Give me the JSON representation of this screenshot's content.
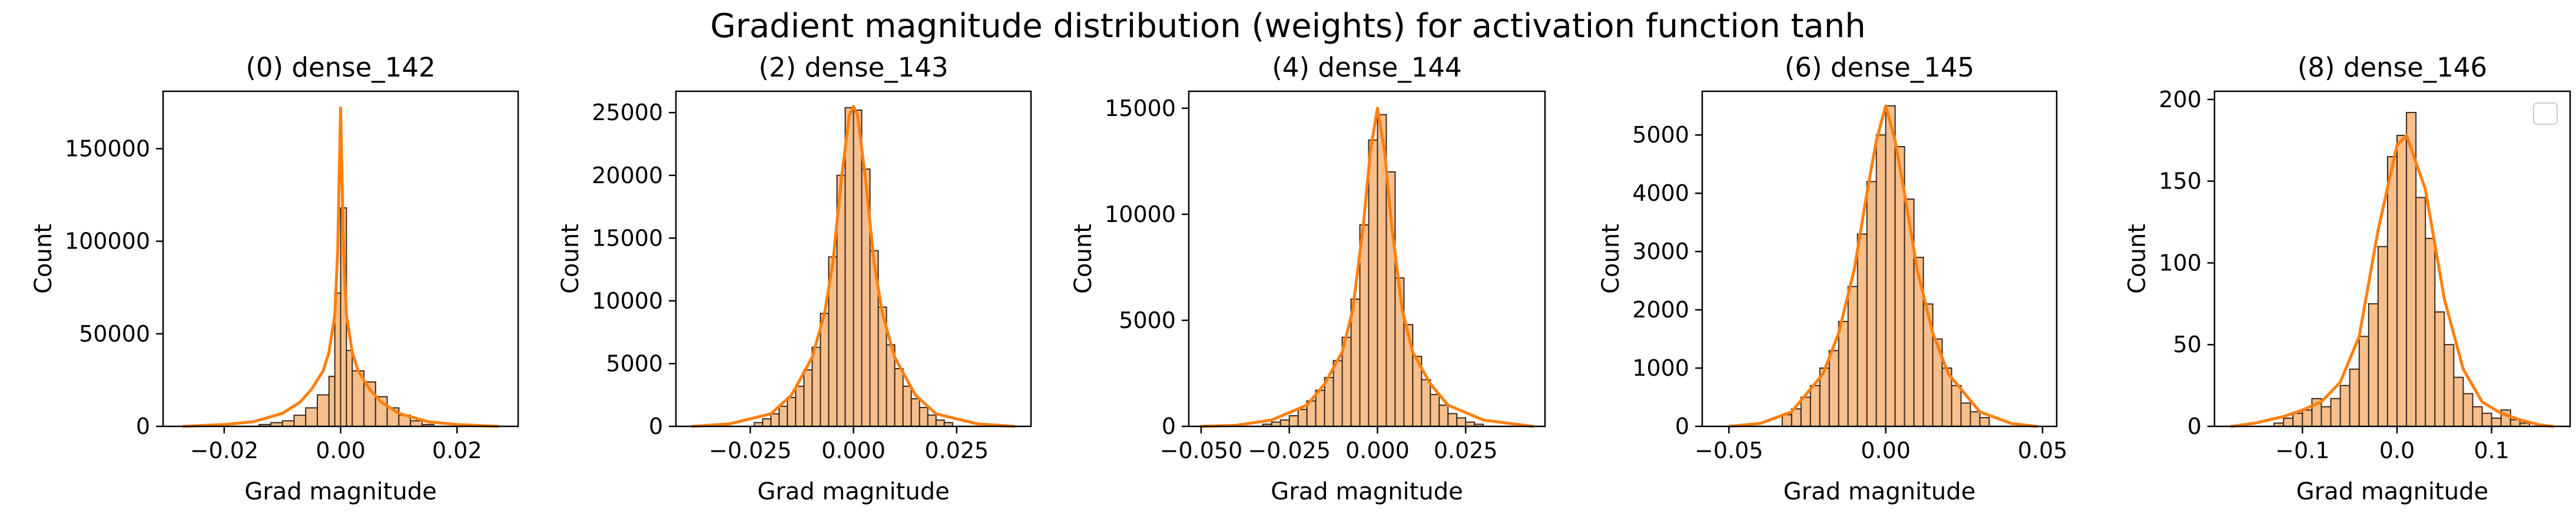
{
  "title": "Gradient magnitude distribution (weights) for activation function tanh",
  "colors": {
    "bar_fill": "#f7bf8c",
    "bar_edge": "#3a2a1e",
    "kde_line": "#ff7f0e",
    "axis": "#000000"
  },
  "chart_data": [
    {
      "type": "bar",
      "title": "(0) dense_142",
      "xlabel": "Grad magnitude",
      "ylabel": "Count",
      "xlim": [
        -0.0305,
        0.0305
      ],
      "ylim": [
        0,
        181000
      ],
      "xticks": [
        -0.02,
        0,
        0.02
      ],
      "xtick_labels": [
        "−0.02",
        "0.00",
        "0.02"
      ],
      "yticks": [
        0,
        50000,
        100000,
        150000
      ],
      "ytick_labels": [
        "0",
        "50000",
        "100000",
        "150000"
      ],
      "grid": false,
      "bins": [
        [
          -0.014,
          -0.012,
          1000
        ],
        [
          -0.012,
          -0.01,
          2000
        ],
        [
          -0.01,
          -0.008,
          3000
        ],
        [
          -0.008,
          -0.006,
          6000
        ],
        [
          -0.006,
          -0.004,
          10000
        ],
        [
          -0.004,
          -0.002,
          17000
        ],
        [
          -0.002,
          -0.001,
          27000
        ],
        [
          -0.001,
          0.0,
          72000
        ],
        [
          0.0,
          0.001,
          118000
        ],
        [
          0.001,
          0.002,
          41000
        ],
        [
          0.002,
          0.004,
          30000
        ],
        [
          0.004,
          0.006,
          24000
        ],
        [
          0.006,
          0.008,
          16000
        ],
        [
          0.008,
          0.01,
          10000
        ],
        [
          0.01,
          0.012,
          6000
        ],
        [
          0.012,
          0.014,
          3000
        ],
        [
          0.014,
          0.016,
          1000
        ]
      ],
      "kde_x": [
        -0.027,
        -0.02,
        -0.015,
        -0.01,
        -0.007,
        -0.005,
        -0.003,
        -0.002,
        -0.001,
        -0.0005,
        0,
        0.0005,
        0.001,
        0.002,
        0.003,
        0.005,
        0.007,
        0.01,
        0.015,
        0.02,
        0.027
      ],
      "kde_y": [
        0,
        1000,
        2500,
        7000,
        13000,
        20000,
        30000,
        40000,
        60000,
        95000,
        172000,
        95000,
        60000,
        40000,
        30000,
        20000,
        13000,
        7000,
        2500,
        1000,
        0
      ]
    },
    {
      "type": "bar",
      "title": "(2) dense_143",
      "xlabel": "Grad magnitude",
      "ylabel": "Count",
      "xlim": [
        -0.043,
        0.043
      ],
      "ylim": [
        0,
        26700
      ],
      "xticks": [
        -0.025,
        0,
        0.025
      ],
      "xtick_labels": [
        "−0.025",
        "0.000",
        "0.025"
      ],
      "yticks": [
        0,
        5000,
        10000,
        15000,
        20000,
        25000
      ],
      "ytick_labels": [
        "0",
        "5000",
        "10000",
        "15000",
        "20000",
        "25000"
      ],
      "grid": false,
      "bins": [
        [
          -0.024,
          -0.022,
          300
        ],
        [
          -0.022,
          -0.02,
          600
        ],
        [
          -0.02,
          -0.018,
          1000
        ],
        [
          -0.018,
          -0.016,
          1600
        ],
        [
          -0.016,
          -0.014,
          2300
        ],
        [
          -0.014,
          -0.012,
          3200
        ],
        [
          -0.012,
          -0.01,
          4500
        ],
        [
          -0.01,
          -0.008,
          6300
        ],
        [
          -0.008,
          -0.006,
          9000
        ],
        [
          -0.006,
          -0.004,
          13500
        ],
        [
          -0.004,
          -0.002,
          20000
        ],
        [
          -0.002,
          0.0,
          25400
        ],
        [
          0.0,
          0.002,
          25200
        ],
        [
          0.002,
          0.004,
          20500
        ],
        [
          0.004,
          0.006,
          14000
        ],
        [
          0.006,
          0.008,
          9500
        ],
        [
          0.008,
          0.01,
          6500
        ],
        [
          0.01,
          0.012,
          4600
        ],
        [
          0.012,
          0.014,
          3200
        ],
        [
          0.014,
          0.016,
          2200
        ],
        [
          0.016,
          0.018,
          1500
        ],
        [
          0.018,
          0.02,
          900
        ],
        [
          0.02,
          0.022,
          500
        ],
        [
          0.022,
          0.024,
          300
        ]
      ],
      "kde_x": [
        -0.039,
        -0.03,
        -0.02,
        -0.015,
        -0.01,
        -0.007,
        -0.005,
        -0.003,
        -0.001,
        0,
        0.001,
        0.003,
        0.005,
        0.007,
        0.01,
        0.015,
        0.02,
        0.03,
        0.039
      ],
      "kde_y": [
        0,
        200,
        1000,
        2500,
        5500,
        9000,
        13000,
        19500,
        24800,
        25500,
        24800,
        19500,
        13000,
        9000,
        5500,
        2500,
        1000,
        200,
        0
      ]
    },
    {
      "type": "bar",
      "title": "(4) dense_144",
      "xlabel": "Grad magnitude",
      "ylabel": "Count",
      "xlim": [
        -0.0535,
        0.0475
      ],
      "ylim": [
        0,
        15800
      ],
      "xticks": [
        -0.05,
        -0.025,
        0,
        0.025
      ],
      "xtick_labels": [
        "−0.050",
        "−0.025",
        "0.000",
        "0.025"
      ],
      "yticks": [
        0,
        5000,
        10000,
        15000
      ],
      "ytick_labels": [
        "0",
        "5000",
        "10000",
        "15000"
      ],
      "grid": false,
      "bins": [
        [
          -0.0325,
          -0.03,
          100
        ],
        [
          -0.03,
          -0.0275,
          200
        ],
        [
          -0.0275,
          -0.025,
          300
        ],
        [
          -0.025,
          -0.0225,
          500
        ],
        [
          -0.0225,
          -0.02,
          800
        ],
        [
          -0.02,
          -0.0175,
          1200
        ],
        [
          -0.0175,
          -0.015,
          1700
        ],
        [
          -0.015,
          -0.0125,
          2300
        ],
        [
          -0.0125,
          -0.01,
          3100
        ],
        [
          -0.01,
          -0.0075,
          4200
        ],
        [
          -0.0075,
          -0.005,
          6000
        ],
        [
          -0.005,
          -0.0025,
          9500
        ],
        [
          -0.0025,
          0.0,
          13500
        ],
        [
          0.0,
          0.0025,
          14700
        ],
        [
          0.0025,
          0.005,
          12000
        ],
        [
          0.005,
          0.0075,
          7000
        ],
        [
          0.0075,
          0.01,
          4800
        ],
        [
          0.01,
          0.0125,
          3300
        ],
        [
          0.0125,
          0.015,
          2200
        ],
        [
          0.015,
          0.0175,
          1500
        ],
        [
          0.0175,
          0.02,
          1000
        ],
        [
          0.02,
          0.0225,
          600
        ],
        [
          0.0225,
          0.025,
          400
        ],
        [
          0.025,
          0.0275,
          200
        ],
        [
          0.0275,
          0.03,
          100
        ]
      ],
      "kde_x": [
        -0.05,
        -0.04,
        -0.03,
        -0.02,
        -0.015,
        -0.01,
        -0.007,
        -0.004,
        -0.002,
        0,
        0.002,
        0.004,
        0.007,
        0.01,
        0.015,
        0.02,
        0.03,
        0.044
      ],
      "kde_y": [
        0,
        50,
        300,
        1000,
        2000,
        3500,
        5500,
        9500,
        13000,
        15000,
        13000,
        9500,
        5500,
        3500,
        2000,
        1000,
        300,
        0
      ]
    },
    {
      "type": "bar",
      "title": "(6) dense_145",
      "xlabel": "Grad magnitude",
      "ylabel": "Count",
      "xlim": [
        -0.0585,
        0.0545
      ],
      "ylim": [
        0,
        5750
      ],
      "xticks": [
        -0.05,
        0,
        0.05
      ],
      "xtick_labels": [
        "−0.05",
        "0.00",
        "0.05"
      ],
      "yticks": [
        0,
        1000,
        2000,
        3000,
        4000,
        5000
      ],
      "ytick_labels": [
        "0",
        "1000",
        "2000",
        "3000",
        "4000",
        "5000"
      ],
      "grid": false,
      "bins": [
        [
          -0.033,
          -0.03,
          200
        ],
        [
          -0.03,
          -0.027,
          300
        ],
        [
          -0.027,
          -0.024,
          500
        ],
        [
          -0.024,
          -0.021,
          700
        ],
        [
          -0.021,
          -0.018,
          1000
        ],
        [
          -0.018,
          -0.015,
          1300
        ],
        [
          -0.015,
          -0.012,
          1800
        ],
        [
          -0.012,
          -0.009,
          2400
        ],
        [
          -0.009,
          -0.006,
          3300
        ],
        [
          -0.006,
          -0.003,
          4200
        ],
        [
          -0.003,
          0.0,
          5000
        ],
        [
          0.0,
          0.003,
          5500
        ],
        [
          0.003,
          0.006,
          4800
        ],
        [
          0.006,
          0.009,
          3900
        ],
        [
          0.009,
          0.012,
          2900
        ],
        [
          0.012,
          0.015,
          2100
        ],
        [
          0.015,
          0.018,
          1500
        ],
        [
          0.018,
          0.021,
          1000
        ],
        [
          0.021,
          0.024,
          700
        ],
        [
          0.024,
          0.027,
          400
        ],
        [
          0.027,
          0.03,
          250
        ],
        [
          0.03,
          0.033,
          150
        ]
      ],
      "kde_x": [
        -0.05,
        -0.04,
        -0.03,
        -0.02,
        -0.015,
        -0.01,
        -0.006,
        -0.003,
        0,
        0.003,
        0.006,
        0.01,
        0.015,
        0.02,
        0.03,
        0.04,
        0.048
      ],
      "kde_y": [
        0,
        50,
        250,
        900,
        1600,
        2700,
        4000,
        4900,
        5500,
        4900,
        4000,
        2700,
        1600,
        900,
        250,
        50,
        0
      ]
    },
    {
      "type": "bar",
      "title": "(8) dense_146",
      "xlabel": "Grad magnitude",
      "ylabel": "Count",
      "xlim": [
        -0.193,
        0.183
      ],
      "ylim": [
        0,
        205
      ],
      "xticks": [
        -0.1,
        0,
        0.1
      ],
      "xtick_labels": [
        "−0.1",
        "0.0",
        "0.1"
      ],
      "yticks": [
        0,
        50,
        100,
        150,
        200
      ],
      "ytick_labels": [
        "0",
        "50",
        "100",
        "150",
        "200"
      ],
      "grid": false,
      "legend": {
        "position": "upper right",
        "entries": []
      },
      "bins": [
        [
          -0.13,
          -0.12,
          2
        ],
        [
          -0.12,
          -0.11,
          5
        ],
        [
          -0.11,
          -0.1,
          8
        ],
        [
          -0.1,
          -0.09,
          10
        ],
        [
          -0.09,
          -0.08,
          17
        ],
        [
          -0.08,
          -0.07,
          12
        ],
        [
          -0.07,
          -0.06,
          17
        ],
        [
          -0.06,
          -0.05,
          25
        ],
        [
          -0.05,
          -0.04,
          35
        ],
        [
          -0.04,
          -0.03,
          55
        ],
        [
          -0.03,
          -0.02,
          75
        ],
        [
          -0.02,
          -0.01,
          110
        ],
        [
          -0.01,
          0.0,
          165
        ],
        [
          0.0,
          0.01,
          178
        ],
        [
          0.01,
          0.02,
          192
        ],
        [
          0.02,
          0.03,
          140
        ],
        [
          0.03,
          0.04,
          115
        ],
        [
          0.04,
          0.05,
          70
        ],
        [
          0.05,
          0.06,
          50
        ],
        [
          0.06,
          0.07,
          30
        ],
        [
          0.07,
          0.08,
          20
        ],
        [
          0.08,
          0.09,
          12
        ],
        [
          0.09,
          0.1,
          8
        ],
        [
          0.1,
          0.11,
          5
        ],
        [
          0.11,
          0.12,
          10
        ],
        [
          0.12,
          0.13,
          4
        ],
        [
          0.13,
          0.14,
          2
        ]
      ],
      "kde_x": [
        -0.175,
        -0.15,
        -0.12,
        -0.1,
        -0.08,
        -0.06,
        -0.04,
        -0.02,
        0,
        0.01,
        0.03,
        0.05,
        0.07,
        0.09,
        0.11,
        0.13,
        0.15,
        0.165
      ],
      "kde_y": [
        0,
        2,
        6,
        10,
        15,
        27,
        55,
        120,
        172,
        178,
        145,
        78,
        35,
        15,
        8,
        4,
        1,
        0
      ]
    }
  ]
}
